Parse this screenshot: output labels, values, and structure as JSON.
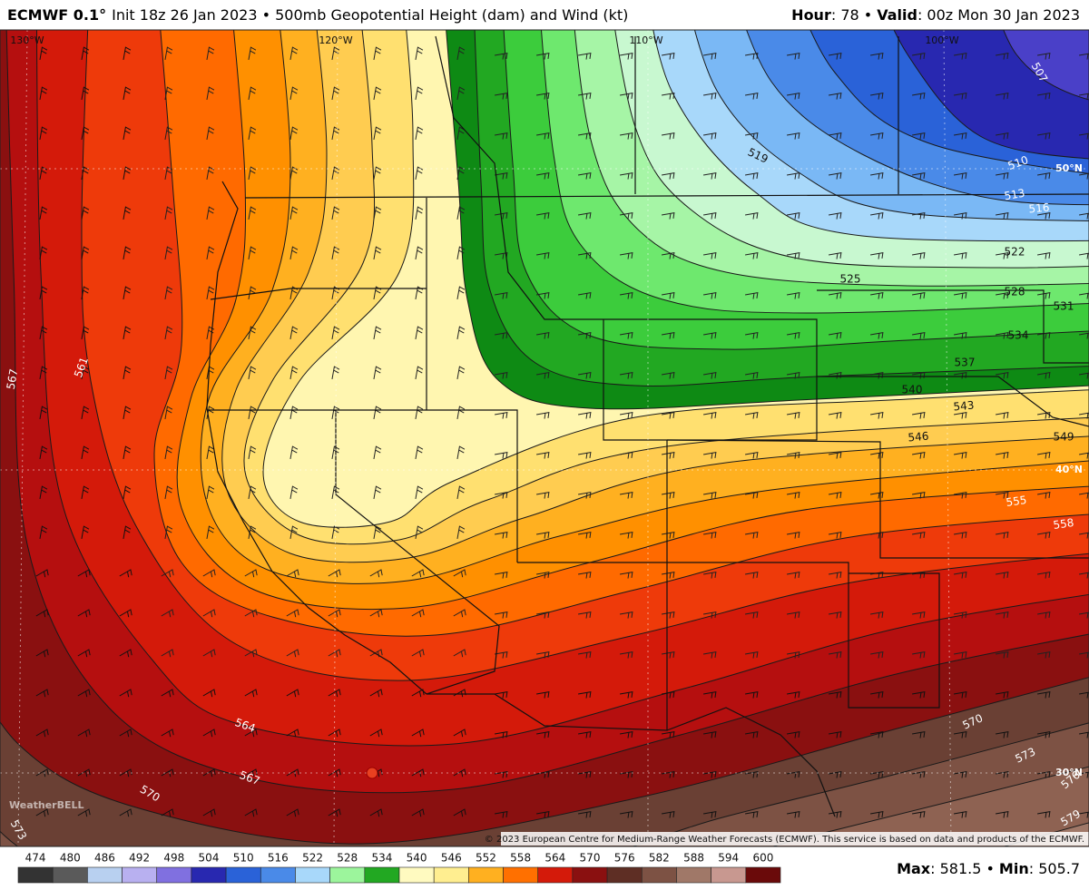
{
  "header": {
    "model": "ECMWF 0.1°",
    "subtitle": "Init 18z 26 Jan 2023 • 500mb Geopotential Height (dam) and Wind (kt)",
    "hour_label": "Hour",
    "hour_value": ": 78 •",
    "valid_label": "Valid",
    "valid_value": ": 00z Mon 30 Jan 2023"
  },
  "map": {
    "longitudes": [
      "130°W",
      "120°W",
      "110°W",
      "100°W"
    ],
    "latitudes": [
      "50°N",
      "40°N",
      "30°N"
    ],
    "contour_labels": [
      "507",
      "510",
      "513",
      "516",
      "519",
      "522",
      "525",
      "528",
      "531",
      "534",
      "537",
      "540",
      "543",
      "546",
      "549",
      "555",
      "558",
      "561",
      "564",
      "567",
      "567",
      "570",
      "570",
      "573",
      "576",
      "579",
      "573"
    ],
    "copyright": "© 2023 European Centre for Medium-Range Weather Forecasts (ECMWF). This service is based on data and products of the ECMWF.",
    "logo": "WeatherBELL"
  },
  "colorbar": {
    "ticks": [
      474,
      480,
      486,
      492,
      498,
      504,
      510,
      516,
      522,
      528,
      534,
      540,
      546,
      552,
      558,
      564,
      570,
      576,
      582,
      588,
      594,
      600
    ],
    "colors": [
      "#333333",
      "#5a5a5a",
      "#b8d0f0",
      "#b8b0f0",
      "#8070e0",
      "#2828b0",
      "#2a62d8",
      "#4a8ae8",
      "#a8d8fa",
      "#9cf59c",
      "#22a822",
      "#fffac0",
      "#ffee90",
      "#ffb020",
      "#ff7000",
      "#d41a0a",
      "#8a1010",
      "#5e2e24",
      "#7d5244",
      "#a07868",
      "#c89890",
      "#6a0a0a"
    ]
  },
  "footer": {
    "max_label": "Max",
    "max_value": ": 581.5 •",
    "min_label": "Min",
    "min_value": ": 505.7"
  }
}
